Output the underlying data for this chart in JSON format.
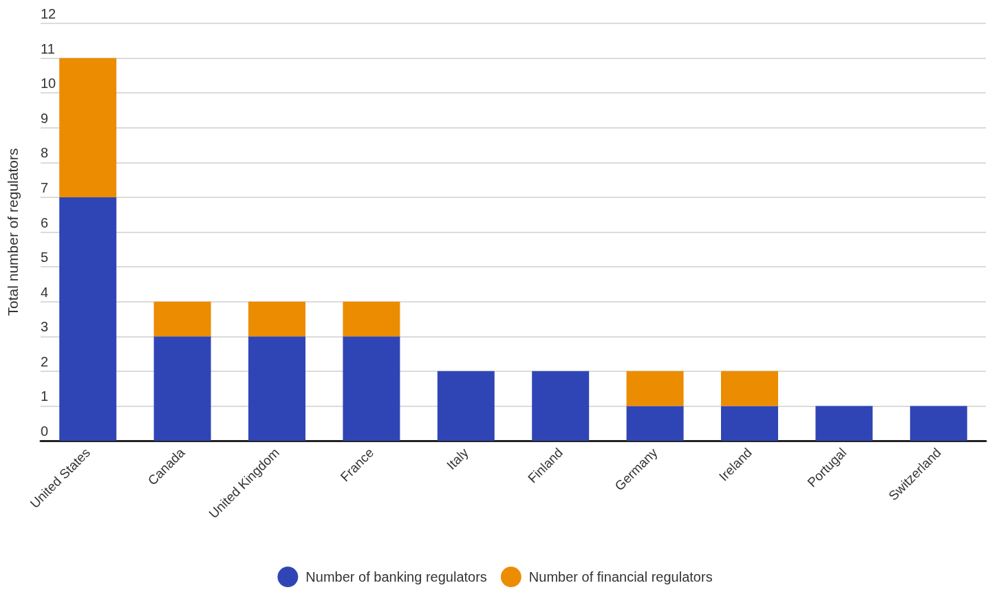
{
  "chart_data": {
    "type": "bar",
    "stacked": true,
    "ylabel": "Total number of regulators",
    "categories": [
      "United States",
      "Canada",
      "United Kingdom",
      "France",
      "Italy",
      "Finland",
      "Germany",
      "Ireland",
      "Portugal",
      "Switzerland"
    ],
    "series": [
      {
        "name": "Number of banking regulators",
        "color": "#3045b5",
        "values": [
          7,
          3,
          3,
          3,
          2,
          2,
          1,
          1,
          1,
          1
        ]
      },
      {
        "name": "Number of financial regulators",
        "color": "#ec8c00",
        "values": [
          4,
          1,
          1,
          1,
          0,
          0,
          1,
          1,
          0,
          0
        ]
      }
    ],
    "ylim": [
      0,
      12
    ],
    "yticks": [
      0,
      1,
      2,
      3,
      4,
      5,
      6,
      7,
      8,
      9,
      10,
      11,
      12
    ],
    "grid": "y",
    "legend": "bottom"
  }
}
